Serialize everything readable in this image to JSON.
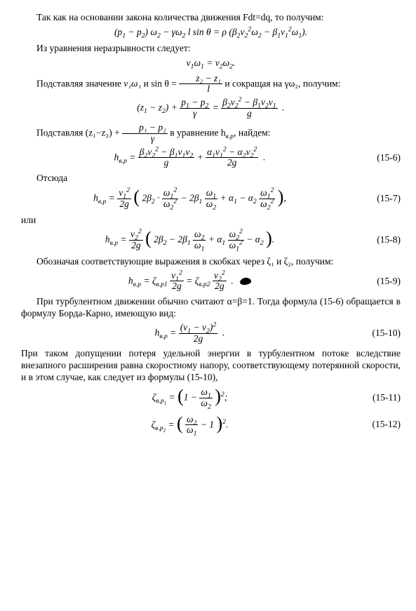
{
  "p1": "Так как на основании закона количества движения Fdt=dq, то получим:",
  "eq1": "(p₁ − p₂) ω₂ − γω₂ l sin θ = ρ (β₂v₂²ω₂ − β₁v₁²ω₁).",
  "p2": "Из уравнения неразрывности следует:",
  "eq2": "v₁ω₁ = v₂ω₂.",
  "p3a": "Подставляя значение ",
  "p3b": " и sin θ = ",
  "p3_frac_num": "z₂ − z₁",
  "p3_frac_den": "l",
  "p3c": " и сокращая на γω₂, получим:",
  "eq3_lhs": "(z₁ − z₂) + ",
  "eq3_f1n": "p₁ − p₂",
  "eq3_f1d": "γ",
  "eq3_mid": " = ",
  "eq3_f2n": "β₂v₂² − β₁v₂v₁",
  "eq3_f2d": "g",
  "eq3_end": " .",
  "p4a": "Подставляя (z₁−z₂) + ",
  "p4_fn": "p₁ − p₂",
  "p4_fd": "γ",
  "p4b": " в уравнение h",
  "p4c": ", найдем:",
  "eq4_lhs": "h_{в.р} = ",
  "eq4_f1n": "β₂v₂² − β₁v₁v₂",
  "eq4_f1d": "g",
  "eq4_mid": " + ",
  "eq4_f2n": "α₁v₁² − α₂v₂²",
  "eq4_f2d": "2g",
  "eq4_end": " .",
  "eq4_num": "(15-6)",
  "p5": "Отсюда",
  "eq5_pre": "h_{в.р} = ",
  "eq5_f1n": "v₁²",
  "eq5_f1d": "2g",
  "eq5_open": "(",
  "eq5_t1": "2β₂ · ",
  "eq5_f2n": "ω₁²",
  "eq5_f2d": "ω₂²",
  "eq5_t2": " − 2β₁ ",
  "eq5_f3n": "ω₁",
  "eq5_f3d": "ω₂",
  "eq5_t3": " + α₁ − α₂ ",
  "eq5_f4n": "ω₁²",
  "eq5_f4d": "ω₂²",
  "eq5_close": "),",
  "eq5_num": "(15-7)",
  "p6": "или",
  "eq6_pre": "h_{в.р} = ",
  "eq6_f1n": "v₂²",
  "eq6_f1d": "2g",
  "eq6_open": "(",
  "eq6_t1": "2β₂ − 2β₁ ",
  "eq6_f2n": "ω₂",
  "eq6_f2d": "ω₁",
  "eq6_t2": " + α₁ ",
  "eq6_f3n": "ω₂²",
  "eq6_f3d": "ω₁²",
  "eq6_t3": " − α₂",
  "eq6_close": ").",
  "eq6_num": "(15-8)",
  "p7": "Обозначая соответствующие выражения в скобках через ζ₁ и ζ₂, получим:",
  "eq7_a": "h_{в.р} = ζ_{в.р1} ",
  "eq7_f1n": "v₁²",
  "eq7_f1d": "2g",
  "eq7_b": " = ζ_{в.р2} ",
  "eq7_f2n": "v₂²",
  "eq7_f2d": "2g",
  "eq7_c": " .",
  "eq7_num": "(15-9)",
  "p8": "При турбулентном движении обычно считают α=β=1. Тогда формула (15-6) обращается в формулу Борда-Карно, имеющую вид:",
  "eq8_pre": "h_{в.р} = ",
  "eq8_fn": "(v₁ − v₂)²",
  "eq8_fd": "2g",
  "eq8_end": " .",
  "eq8_num": "(15-10)",
  "p9": "При таком допущении потеря удельной энергии в турбулентном потоке вследствие внезапного расширения равна скоростному напору, соответствующему потерянной скорости, и в этом случае, как следует из формулы (15-10),",
  "eq9_pre": "ζ_{в.р₁} = ",
  "eq9_open": "(",
  "eq9_a": "1 − ",
  "eq9_fn": "ω₁",
  "eq9_fd": "ω₂",
  "eq9_close": ")",
  "eq9_pow": "2",
  "eq9_end": ";",
  "eq9_num": "(15-11)",
  "eq10_pre": "ζ_{в.р₂} = ",
  "eq10_open": "(",
  "eq10_fn": "ω₂",
  "eq10_fd": "ω₁",
  "eq10_a": " − 1",
  "eq10_close": ")",
  "eq10_pow": "2",
  "eq10_end": ".",
  "eq10_num": "(15-12)",
  "inline_v1w1": "v₁ω₁",
  "sub_vp": "в.р"
}
